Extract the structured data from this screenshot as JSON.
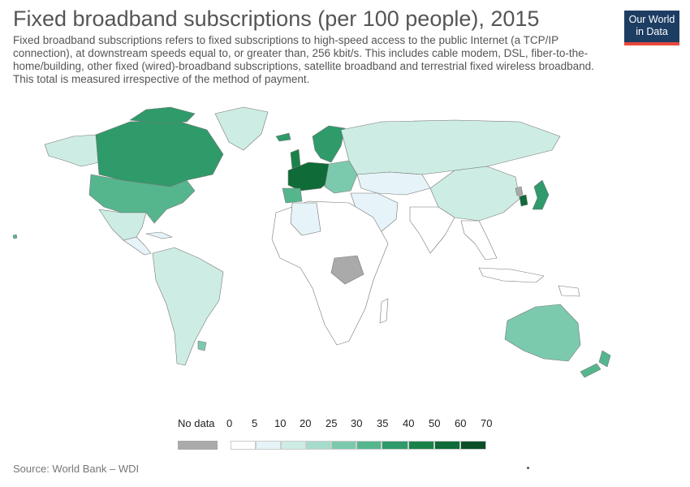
{
  "title": "Fixed broadband subscriptions (per 100 people), 2015",
  "subtitle": "Fixed broadband subscriptions refers to fixed subscriptions to high-speed access to the public Internet (a TCP/IP connection), at downstream speeds equal to, or greater than, 256 kbit/s. This includes cable modem, DSL, fiber-to-the-home/building, other fixed (wired)-broadband subscriptions, satellite broadband and terrestrial fixed wireless broadband. This total is measured irrespective of the method of payment.",
  "logo": {
    "line1": "Our World",
    "line2": "in Data"
  },
  "legend": {
    "no_data_label": "No data",
    "no_data_color": "#aaaaaa",
    "ticks": [
      "0",
      "5",
      "10",
      "20",
      "25",
      "30",
      "35",
      "40",
      "50",
      "60",
      "70"
    ],
    "colors": [
      "#ffffff",
      "#e6f3f8",
      "#cdece4",
      "#a6dccb",
      "#7ccaae",
      "#55b68e",
      "#2f9a6a",
      "#1a8249",
      "#0f6b37",
      "#0a4f28"
    ]
  },
  "source": "Source: World Bank – WDI"
}
